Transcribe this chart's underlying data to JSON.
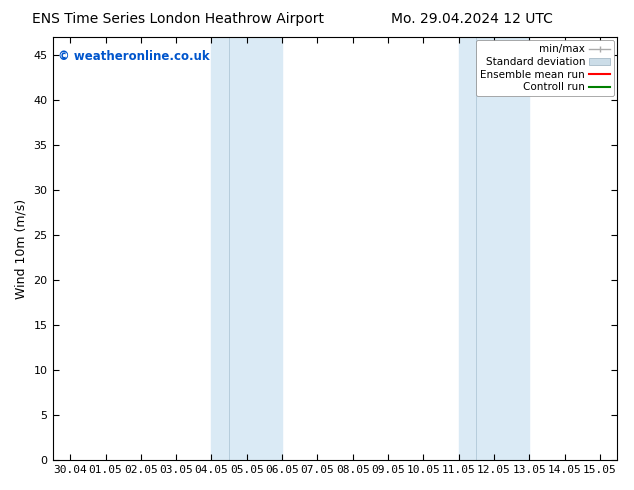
{
  "title_left": "ENS Time Series London Heathrow Airport",
  "title_right": "Mo. 29.04.2024 12 UTC",
  "ylabel": "Wind 10m (m/s)",
  "bg_color": "#ffffff",
  "plot_bg_color": "#ffffff",
  "x_tick_labels": [
    "30.04",
    "01.05",
    "02.05",
    "03.05",
    "04.05",
    "05.05",
    "06.05",
    "07.05",
    "08.05",
    "09.05",
    "10.05",
    "11.05",
    "12.05",
    "13.05",
    "14.05",
    "15.05"
  ],
  "x_tick_positions": [
    0,
    1,
    2,
    3,
    4,
    5,
    6,
    7,
    8,
    9,
    10,
    11,
    12,
    13,
    14,
    15
  ],
  "xlim": [
    -0.5,
    15.5
  ],
  "ylim": [
    0,
    47
  ],
  "yticks": [
    0,
    5,
    10,
    15,
    20,
    25,
    30,
    35,
    40,
    45
  ],
  "band1_x0": 4.0,
  "band1_x1": 6.0,
  "band1_inner": 4.5,
  "band2_x0": 11.0,
  "band2_x1": 13.0,
  "band2_inner": 11.5,
  "band_color": "#daeaf5",
  "band_inner_color": "#c5dced",
  "watermark_text": "© weatheronline.co.uk",
  "watermark_color": "#0055cc",
  "tick_color": "#000000",
  "spine_color": "#000000",
  "legend_minmax_color": "#aaaaaa",
  "legend_std_color": "#ccdde8",
  "legend_mean_color": "#ff0000",
  "legend_ctrl_color": "#008000"
}
